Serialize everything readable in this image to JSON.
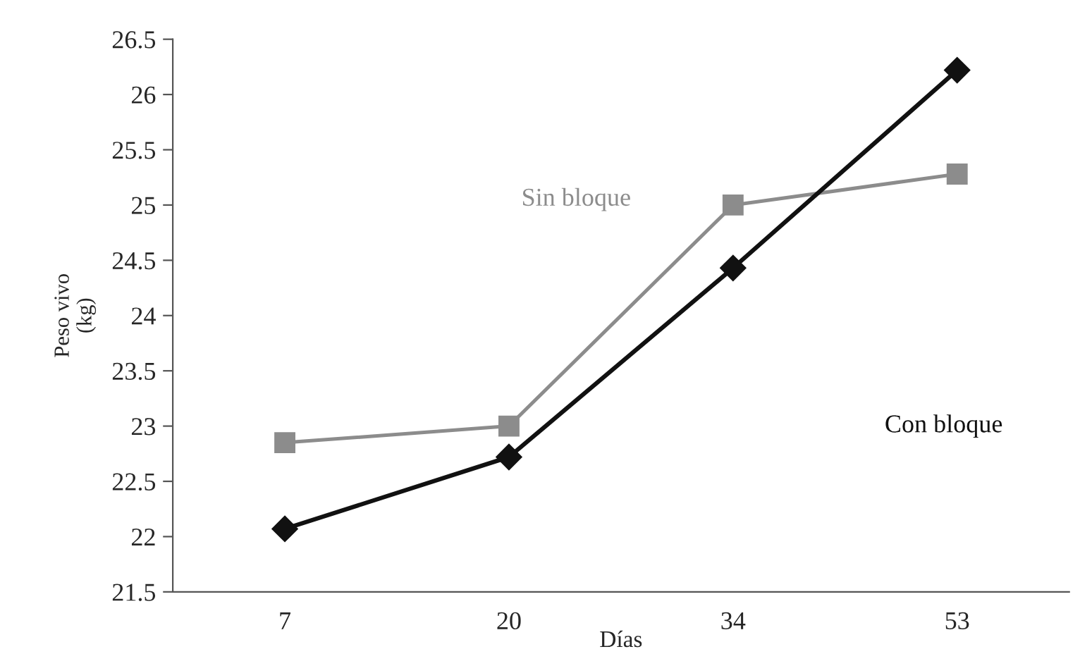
{
  "chart_data": {
    "type": "line",
    "xlabel": "Días",
    "ylabel": "Peso vivo\n(kg)",
    "categories": [
      "7",
      "20",
      "34",
      "53"
    ],
    "series": [
      {
        "name": "Sin bloque",
        "color": "#8c8c8c",
        "marker": "square",
        "values": [
          22.85,
          23.0,
          25.0,
          25.28
        ]
      },
      {
        "name": "Con bloque",
        "color": "#111111",
        "marker": "diamond",
        "values": [
          22.07,
          22.72,
          24.43,
          26.22
        ]
      }
    ],
    "ylim": [
      21.5,
      26.5
    ],
    "yticks": [
      21.5,
      22,
      22.5,
      23,
      23.5,
      24,
      24.5,
      25,
      25.5,
      26,
      26.5
    ],
    "grid": false,
    "legend": false
  }
}
